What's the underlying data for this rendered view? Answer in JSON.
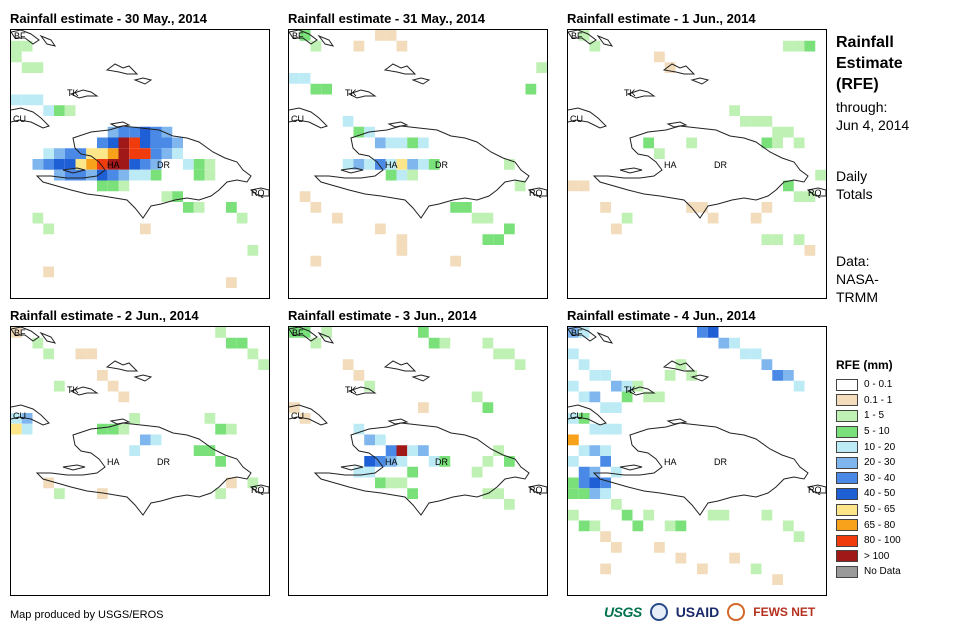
{
  "panels": [
    {
      "title": "Rainfall estimate - 30 May., 2014"
    },
    {
      "title": "Rainfall estimate - 31 May., 2014"
    },
    {
      "title": "Rainfall estimate - 1 Jun., 2014"
    },
    {
      "title": "Rainfall estimate - 2 Jun., 2014"
    },
    {
      "title": "Rainfall estimate - 3 Jun., 2014"
    },
    {
      "title": "Rainfall estimate - 4 Jun., 2014"
    }
  ],
  "map_labels": {
    "bf": "BF",
    "cu": "CU",
    "tk": "TK",
    "ha": "HA",
    "dr": "DR",
    "rq": "RQ"
  },
  "sidebar": {
    "title_line1": "Rainfall",
    "title_line2": "Estimate",
    "title_line3": "(RFE)",
    "through_label": "through:",
    "through_date": "Jun 4, 2014",
    "daily_line1": "Daily",
    "daily_line2": "Totals",
    "source_line1": "Data:",
    "source_line2": "NASA-",
    "source_line3": "TRMM"
  },
  "legend": {
    "title": "RFE (mm)",
    "items": [
      {
        "label": "0 - 0.1",
        "color": "#ffffff"
      },
      {
        "label": "0.1 - 1",
        "color": "#f2dcbc"
      },
      {
        "label": "1 - 5",
        "color": "#bff0b4"
      },
      {
        "label": "5 - 10",
        "color": "#79e07a"
      },
      {
        "label": "10 - 20",
        "color": "#bdebf5"
      },
      {
        "label": "20 - 30",
        "color": "#7fb6ee"
      },
      {
        "label": "30 - 40",
        "color": "#4a8ae6"
      },
      {
        "label": "40 - 50",
        "color": "#1f5fd6"
      },
      {
        "label": "50 - 65",
        "color": "#fde58a"
      },
      {
        "label": "65 - 80",
        "color": "#f7a21a"
      },
      {
        "label": "80 - 100",
        "color": "#f03c0c"
      },
      {
        "label": "> 100",
        "color": "#a01818"
      },
      {
        "label": "No Data",
        "color": "#9a9a9a"
      }
    ]
  },
  "credit": "Map produced by USGS/EROS",
  "logos": {
    "usgs": "USGS",
    "usaid": "USAID",
    "fews": "FEWS NET"
  }
}
